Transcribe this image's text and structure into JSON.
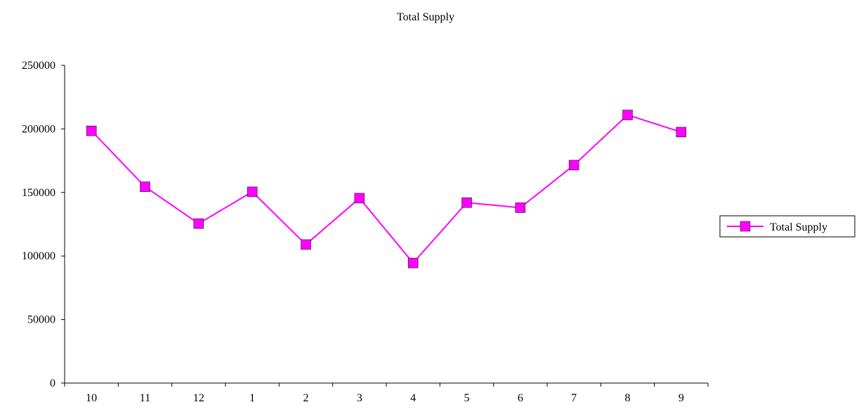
{
  "chart_data": {
    "type": "line",
    "title": "Total Supply",
    "xlabel": "",
    "ylabel": "",
    "categories": [
      "10",
      "11",
      "12",
      "1",
      "2",
      "3",
      "4",
      "5",
      "6",
      "7",
      "8",
      "9"
    ],
    "series": [
      {
        "name": "Total Supply",
        "color": "#ff00ff",
        "marker": "square",
        "values": [
          198500,
          154500,
          125500,
          150500,
          109000,
          145500,
          94500,
          142000,
          138000,
          171500,
          211000,
          197500
        ]
      }
    ],
    "ylim": [
      0,
      250000
    ],
    "yticks": [
      0,
      50000,
      100000,
      150000,
      200000,
      250000
    ],
    "grid": false,
    "legend": "right"
  }
}
